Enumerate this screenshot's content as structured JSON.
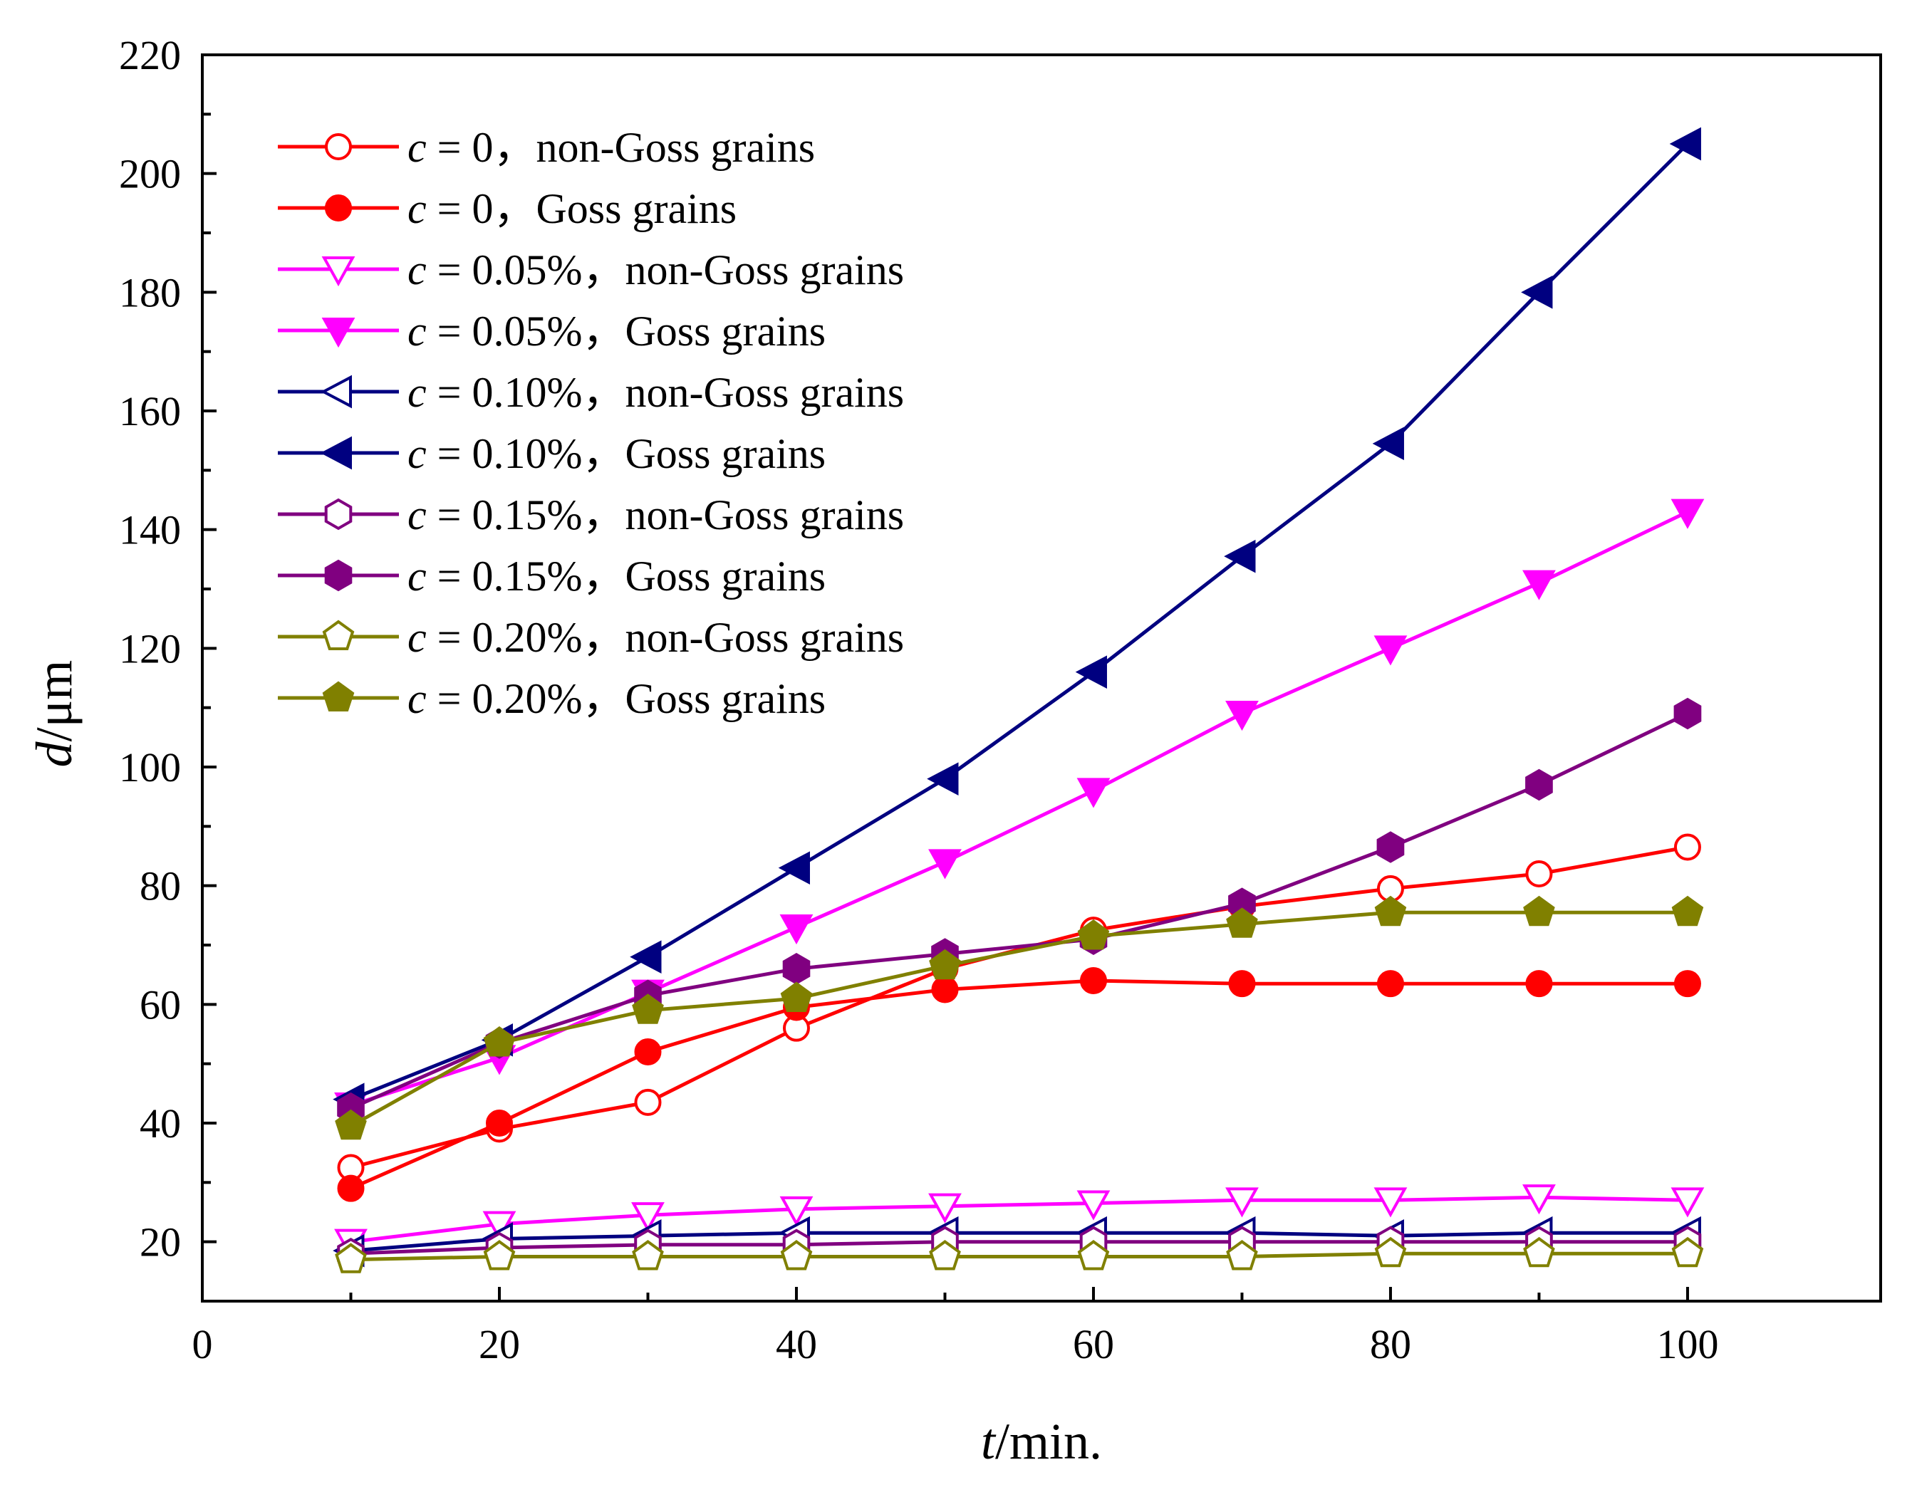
{
  "chart_data": {
    "type": "line",
    "title": "",
    "xlabel_var": "t",
    "xlabel_unit": "/min.",
    "ylabel_var": "d",
    "ylabel_unit": "/μm",
    "xlim": [
      0,
      113
    ],
    "ylim": [
      10,
      220
    ],
    "x_ticks": [
      0,
      20,
      40,
      60,
      80,
      100
    ],
    "y_ticks": [
      20,
      40,
      60,
      80,
      100,
      120,
      140,
      160,
      180,
      200,
      220
    ],
    "legend_position": "top-left",
    "x": [
      10,
      20,
      30,
      40,
      50,
      60,
      70,
      80,
      90,
      100
    ],
    "series": [
      {
        "name": "c = 0，non-Goss grains",
        "c_var": "c",
        "label_rest": " = 0，non-Goss grains",
        "color": "#ff0000",
        "marker": "circle",
        "filled": false,
        "values": [
          32.5,
          39,
          43.5,
          56,
          66,
          72.5,
          76.5,
          79.5,
          82,
          86.5
        ]
      },
      {
        "name": "c = 0，Goss grains",
        "c_var": "c",
        "label_rest": " = 0，Goss grains",
        "color": "#ff0000",
        "marker": "circle",
        "filled": true,
        "values": [
          29,
          40,
          52,
          59.5,
          62.5,
          64,
          63.5,
          63.5,
          63.5,
          63.5
        ]
      },
      {
        "name": "c = 0.05%，non-Goss grains",
        "c_var": "c",
        "label_rest": " = 0.05%，non-Goss grains",
        "color": "#ff00ff",
        "marker": "triangle-down",
        "filled": false,
        "values": [
          20,
          23,
          24.5,
          25.5,
          26,
          26.5,
          27,
          27,
          27.5,
          27
        ]
      },
      {
        "name": "c = 0.05%，Goss grains",
        "c_var": "c",
        "label_rest": " = 0.05%，Goss grains",
        "color": "#ff00ff",
        "marker": "triangle-down",
        "filled": true,
        "values": [
          43,
          51,
          62,
          73,
          84,
          96,
          109,
          120,
          131,
          143
        ]
      },
      {
        "name": "c = 0.10%，non-Goss grains",
        "c_var": "c",
        "label_rest": " = 0.10%，non-Goss grains",
        "color": "#000080",
        "marker": "triangle-left",
        "filled": false,
        "values": [
          18.5,
          20.5,
          21,
          21.5,
          21.5,
          21.5,
          21.5,
          21,
          21.5,
          21.5
        ]
      },
      {
        "name": "c = 0.10%，Goss grains",
        "c_var": "c",
        "label_rest": " = 0.10%，Goss grains",
        "color": "#000080",
        "marker": "triangle-left",
        "filled": true,
        "values": [
          44,
          54,
          68,
          83,
          98,
          116,
          135.5,
          154.5,
          180,
          205
        ]
      },
      {
        "name": "c = 0.15%，non-Goss grains",
        "c_var": "c",
        "label_rest": " = 0.15%，non-Goss grains",
        "color": "#800080",
        "marker": "hexagon",
        "filled": false,
        "values": [
          18,
          19,
          19.5,
          19.5,
          20,
          20,
          20,
          20,
          20,
          20
        ]
      },
      {
        "name": "c = 0.15%，Goss grains",
        "c_var": "c",
        "label_rest": " = 0.15%，Goss grains",
        "color": "#800080",
        "marker": "hexagon",
        "filled": true,
        "values": [
          42.5,
          53.5,
          61.5,
          66,
          68.5,
          71,
          77,
          86.5,
          97,
          109
        ]
      },
      {
        "name": "c = 0.20%，non-Goss grains",
        "c_var": "c",
        "label_rest": " = 0.20%，non-Goss grains",
        "color": "#808000",
        "marker": "pentagon",
        "filled": false,
        "values": [
          17,
          17.5,
          17.5,
          17.5,
          17.5,
          17.5,
          17.5,
          18,
          18,
          18
        ]
      },
      {
        "name": "c = 0.20%，Goss grains",
        "c_var": "c",
        "label_rest": " = 0.20%，Goss grains",
        "color": "#808000",
        "marker": "pentagon",
        "filled": true,
        "values": [
          39.5,
          53.5,
          59,
          61,
          66.5,
          71.5,
          73.5,
          75.5,
          75.5,
          75.5
        ]
      }
    ]
  }
}
